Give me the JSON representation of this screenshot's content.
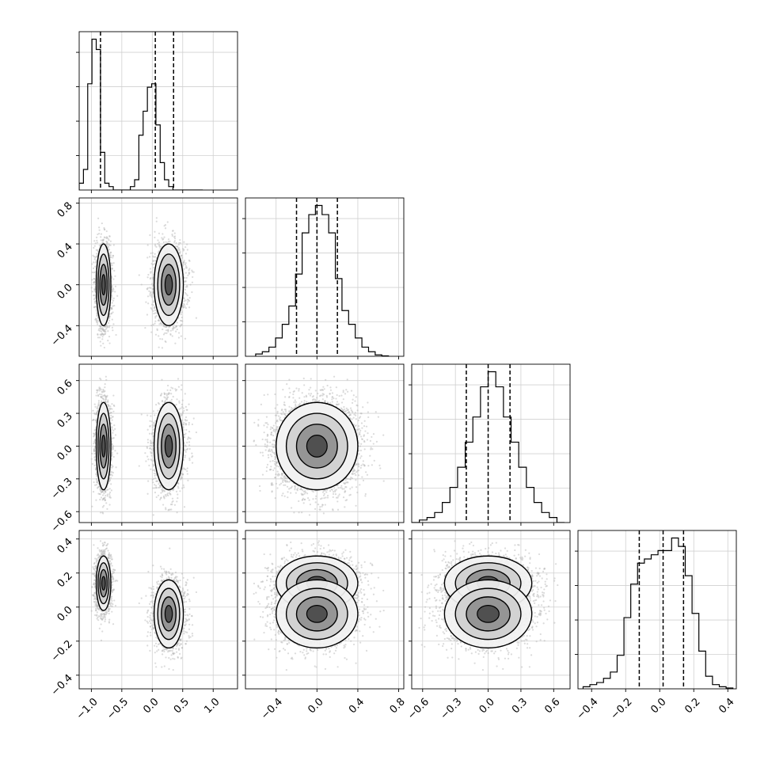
{
  "chart_data": {
    "type": "corner",
    "grid": true,
    "color": "#000000",
    "dimensions": 4,
    "axis_ticks": [
      {
        "ticks": [
          -1.0,
          -0.5,
          0.0,
          0.5,
          1.0
        ],
        "labels": [
          "−1.0",
          "−0.5",
          "0.0",
          "0.5",
          "1.0"
        ],
        "range": [
          -1.2,
          1.4
        ]
      },
      {
        "ticks": [
          -0.4,
          0.0,
          0.4,
          0.8
        ],
        "labels": [
          "−0.4",
          "0.0",
          "0.4",
          "0.8"
        ],
        "range": [
          -0.7,
          0.85
        ]
      },
      {
        "ticks": [
          -0.6,
          -0.3,
          0.0,
          0.3,
          0.6
        ],
        "labels": [
          "−0.6",
          "−0.3",
          "0.0",
          "0.3",
          "0.6"
        ],
        "range": [
          -0.7,
          0.75
        ]
      },
      {
        "ticks": [
          -0.4,
          -0.2,
          0.0,
          0.2,
          0.4
        ],
        "labels": [
          "−0.4",
          "−0.2",
          "0.0",
          "0.2",
          "0.4"
        ],
        "range": [
          -0.48,
          0.45
        ]
      }
    ],
    "histograms": [
      {
        "param": 0,
        "bin_edges": [
          -1.2,
          -1.13,
          -1.06,
          -0.99,
          -0.92,
          -0.85,
          -0.78,
          -0.71,
          -0.64,
          -0.57,
          -0.5,
          -0.43,
          -0.36,
          -0.29,
          -0.22,
          -0.15,
          -0.08,
          -0.01,
          0.06,
          0.13,
          0.2,
          0.27,
          0.34,
          0.41,
          0.48,
          0.55,
          0.62,
          0.69,
          0.76,
          0.83
        ],
        "counts": [
          2,
          6,
          31,
          44,
          41,
          11,
          2,
          1,
          0,
          0,
          0,
          0,
          1,
          3,
          16,
          23,
          30,
          31,
          19,
          8,
          3,
          1,
          0,
          0,
          0,
          0,
          0,
          0,
          0
        ],
        "quantiles": [
          -0.85,
          0.05,
          0.35
        ]
      },
      {
        "param": 1,
        "bin_edges": [
          -0.6,
          -0.535,
          -0.47,
          -0.405,
          -0.34,
          -0.275,
          -0.21,
          -0.145,
          -0.08,
          -0.015,
          0.05,
          0.115,
          0.18,
          0.245,
          0.31,
          0.375,
          0.44,
          0.505,
          0.57,
          0.635,
          0.7
        ],
        "counts": [
          0.5,
          1,
          2,
          4,
          7,
          11,
          18,
          27,
          31,
          33,
          31,
          27,
          17,
          10,
          7,
          4,
          2,
          1,
          0.3,
          0.1
        ],
        "quantiles": [
          -0.2,
          0.0,
          0.2
        ]
      },
      {
        "param": 2,
        "bin_edges": [
          -0.7,
          -0.63,
          -0.56,
          -0.49,
          -0.42,
          -0.35,
          -0.28,
          -0.21,
          -0.14,
          -0.07,
          0.0,
          0.07,
          0.14,
          0.21,
          0.28,
          0.35,
          0.42,
          0.49,
          0.56,
          0.63,
          0.7
        ],
        "counts": [
          0,
          0.5,
          1,
          2,
          4,
          7,
          11,
          16,
          21,
          27,
          30,
          27,
          21,
          16,
          11,
          7,
          4,
          2,
          1,
          0
        ],
        "quantiles": [
          -0.2,
          0.0,
          0.2
        ]
      },
      {
        "param": 3,
        "bin_edges": [
          -0.45,
          -0.41,
          -0.37,
          -0.33,
          -0.29,
          -0.25,
          -0.21,
          -0.17,
          -0.13,
          -0.09,
          -0.05,
          -0.01,
          0.03,
          0.07,
          0.11,
          0.15,
          0.19,
          0.23,
          0.27,
          0.31,
          0.35,
          0.39,
          0.43
        ],
        "counts": [
          0.5,
          1,
          1.5,
          2.5,
          4,
          8,
          17,
          25,
          30,
          31,
          32,
          33,
          33,
          36,
          34,
          27,
          18,
          9,
          3,
          1,
          0.5,
          0.2
        ],
        "quantiles": [
          -0.12,
          0.02,
          0.14
        ]
      }
    ],
    "joint_distribution": {
      "mixture_weights": [
        0.5,
        0.5
      ],
      "components": [
        {
          "mean": [
            -0.8,
            0.0,
            0.0,
            0.14
          ],
          "sd": [
            0.06,
            0.2,
            0.2,
            0.08
          ]
        },
        {
          "mean": [
            0.27,
            0.0,
            0.0,
            -0.04
          ],
          "sd": [
            0.12,
            0.2,
            0.2,
            0.1
          ]
        }
      ]
    }
  }
}
